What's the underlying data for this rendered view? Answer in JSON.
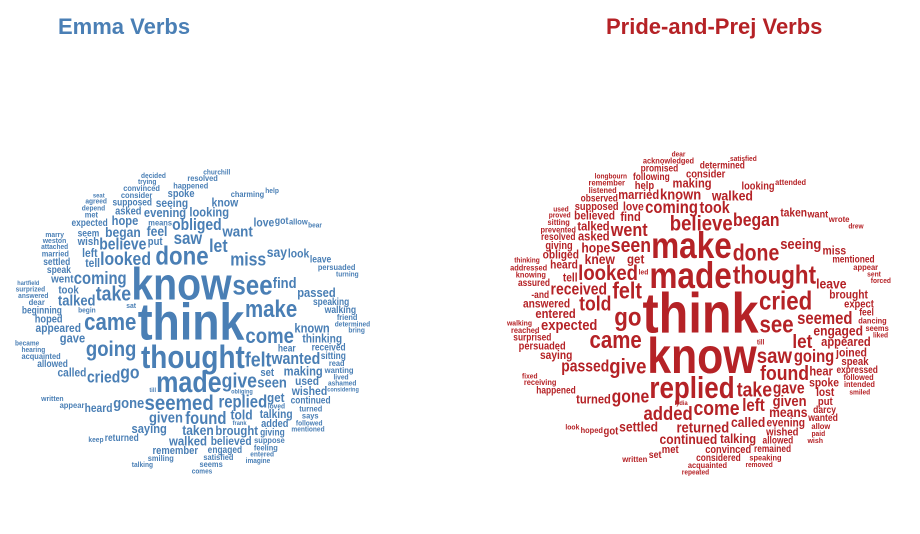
{
  "colors": {
    "emma": "#4a7fb5",
    "pride": "#b52226"
  },
  "clouds": [
    {
      "id": "emma",
      "title": "Emma Verbs",
      "words": [
        [
          "consider",
          8
        ],
        [
          "hear",
          9
        ],
        [
          "begin",
          7
        ],
        [
          "depend",
          7
        ],
        [
          "received",
          9
        ],
        [
          "happened",
          8
        ],
        [
          "attached",
          7
        ],
        [
          "satisfied",
          8
        ],
        [
          "means",
          8
        ],
        [
          "seem",
          9
        ],
        [
          "looking",
          12
        ],
        [
          "obliged",
          15
        ],
        [
          "appear",
          8
        ],
        [
          "suppose",
          8
        ],
        [
          "speaking",
          9
        ],
        [
          "see",
          26
        ],
        [
          "come",
          20
        ],
        [
          "engaged",
          9
        ],
        [
          "given",
          14
        ],
        [
          "charming",
          8
        ],
        [
          "hearing",
          7
        ],
        [
          "answered",
          7
        ],
        [
          "loved",
          7
        ],
        [
          "taken",
          13
        ],
        [
          "talking",
          11
        ],
        [
          "done",
          24
        ],
        [
          "feel",
          13
        ],
        [
          "known",
          12
        ],
        [
          "keep",
          7
        ],
        [
          "saw",
          16
        ],
        [
          "returned",
          9
        ],
        [
          "obliging",
          6
        ],
        [
          "frank",
          6
        ],
        [
          "give",
          19
        ],
        [
          "seen",
          14
        ],
        [
          "took",
          10
        ],
        [
          "smiling",
          8
        ],
        [
          "came",
          22
        ],
        [
          "set",
          10
        ],
        [
          "thought",
          30
        ],
        [
          "read",
          8
        ],
        [
          "trying",
          7
        ],
        [
          "supposed",
          9
        ],
        [
          "till",
          6
        ],
        [
          "thinking",
          11
        ],
        [
          "speak",
          9
        ],
        [
          "seat",
          6
        ],
        [
          "gave",
          12
        ],
        [
          "entered",
          7
        ],
        [
          "called",
          11
        ],
        [
          "went",
          10
        ],
        [
          "got",
          9
        ],
        [
          "evening",
          12
        ],
        [
          "sat",
          7
        ],
        [
          "determined",
          7
        ],
        [
          "asked",
          10
        ],
        [
          "lived",
          7
        ],
        [
          "find",
          14
        ],
        [
          "take",
          19
        ],
        [
          "saying",
          12
        ],
        [
          "acquainted",
          8
        ],
        [
          "followed",
          7
        ],
        [
          "heard",
          11
        ],
        [
          "turned",
          8
        ],
        [
          "gone",
          14
        ],
        [
          "making",
          12
        ],
        [
          "brought",
          12
        ],
        [
          "allow",
          8
        ],
        [
          "told",
          13
        ],
        [
          "believe",
          15
        ],
        [
          "began",
          13
        ],
        [
          "written",
          7
        ],
        [
          "appeared",
          11
        ],
        [
          "know",
          42
        ],
        [
          "go",
          17
        ],
        [
          "hartfield",
          6
        ],
        [
          "comes",
          7
        ],
        [
          "allowed",
          9
        ],
        [
          "met",
          8
        ],
        [
          "married",
          8
        ],
        [
          "want",
          14
        ],
        [
          "giving",
          9
        ],
        [
          "talking",
          7
        ],
        [
          "weston",
          7
        ],
        [
          "continued",
          9
        ],
        [
          "put",
          10
        ],
        [
          "replied",
          16
        ],
        [
          "miss",
          17
        ],
        [
          "agreed",
          7
        ],
        [
          "expected",
          9
        ],
        [
          "talked",
          14
        ],
        [
          "let",
          17
        ],
        [
          "bear",
          7
        ],
        [
          "convinced",
          8
        ],
        [
          "love",
          11
        ],
        [
          "sitting",
          9
        ],
        [
          "wanted",
          15
        ],
        [
          "get",
          12
        ],
        [
          "going",
          20
        ],
        [
          "wish",
          10
        ],
        [
          "coming",
          16
        ],
        [
          "seeing",
          11
        ],
        [
          "surprized",
          7
        ],
        [
          "say",
          13
        ],
        [
          "added",
          10
        ],
        [
          "remember",
          10
        ],
        [
          "found",
          16
        ],
        [
          "felt",
          19
        ],
        [
          "look",
          11
        ],
        [
          "tell",
          11
        ],
        [
          "think",
          48
        ],
        [
          "dear",
          8
        ],
        [
          "friend",
          8
        ],
        [
          "turning",
          7
        ],
        [
          "used",
          11
        ],
        [
          "make",
          22
        ],
        [
          "leave",
          9
        ],
        [
          "passed",
          12
        ],
        [
          "ashamed",
          7
        ],
        [
          "left",
          11
        ],
        [
          "looked",
          17
        ],
        [
          "mentioned",
          7
        ],
        [
          "feeling",
          8
        ],
        [
          "seems",
          8
        ],
        [
          "spoke",
          10
        ],
        [
          "know",
          11
        ],
        [
          "considering",
          6
        ],
        [
          "imagine",
          7
        ],
        [
          "cried",
          15
        ],
        [
          "made",
          27
        ],
        [
          "seemed",
          20
        ],
        [
          "beginning",
          9
        ],
        [
          "hope",
          12
        ],
        [
          "became",
          7
        ],
        [
          "settled",
          9
        ],
        [
          "walked",
          12
        ],
        [
          "hoped",
          10
        ],
        [
          "believed",
          11
        ],
        [
          "wished",
          11
        ],
        [
          "walking",
          9
        ],
        [
          "wanting",
          8
        ],
        [
          "persuaded",
          8
        ],
        [
          "decided",
          7
        ],
        [
          "bring",
          7
        ],
        [
          "says",
          8
        ],
        [
          "resolved",
          8
        ],
        [
          "help",
          7
        ],
        [
          "marry",
          7
        ],
        [
          "churchill",
          7
        ]
      ]
    },
    {
      "id": "pride",
      "title": "Pride-and-Prej Verbs",
      "words": [
        [
          "sent",
          7
        ],
        [
          "prevented",
          8
        ],
        [
          "paid",
          7
        ],
        [
          "repeated",
          7
        ],
        [
          "proved",
          7
        ],
        [
          "listened",
          8
        ],
        [
          "spoke",
          11
        ],
        [
          "allowed",
          9
        ],
        [
          "following",
          9
        ],
        [
          "walking",
          7
        ],
        [
          "heard",
          11
        ],
        [
          "dancing",
          8
        ],
        [
          "hoped",
          8
        ],
        [
          "longbourn",
          7
        ],
        [
          "mentioned",
          9
        ],
        [
          "knew",
          13
        ],
        [
          "asked",
          12
        ],
        [
          "walked",
          13
        ],
        [
          "entered",
          12
        ],
        [
          "considered",
          9
        ],
        [
          "acquainted",
          8
        ],
        [
          "looking",
          10
        ],
        [
          "took",
          15
        ],
        [
          "-and",
          9
        ],
        [
          "hope",
          13
        ],
        [
          "returned",
          14
        ],
        [
          "engaged",
          13
        ],
        [
          "appear",
          8
        ],
        [
          "removed",
          7
        ],
        [
          "called",
          13
        ],
        [
          "liked",
          7
        ],
        [
          "saw",
          20
        ],
        [
          "made",
          34
        ],
        [
          "expected",
          14
        ],
        [
          "smiled",
          7
        ],
        [
          "lydia",
          6
        ],
        [
          "happened",
          9
        ],
        [
          "turned",
          12
        ],
        [
          "gave",
          15
        ],
        [
          "look",
          7
        ],
        [
          "taken",
          11
        ],
        [
          "satisfied",
          7
        ],
        [
          "leave",
          13
        ],
        [
          "appeared",
          12
        ],
        [
          "thinking",
          7
        ],
        [
          "talked",
          12
        ],
        [
          "gone",
          17
        ],
        [
          "looked",
          20
        ],
        [
          "tell",
          11
        ],
        [
          "seen",
          19
        ],
        [
          "left",
          16
        ],
        [
          "began",
          17
        ],
        [
          "means",
          13
        ],
        [
          "used",
          7
        ],
        [
          "followed",
          8
        ],
        [
          "observed",
          9
        ],
        [
          "believe",
          20
        ],
        [
          "knowing",
          8
        ],
        [
          "attended",
          8
        ],
        [
          "found",
          19
        ],
        [
          "wished",
          10
        ],
        [
          "think",
          52
        ],
        [
          "speaking",
          8
        ],
        [
          "seeing",
          14
        ],
        [
          "give",
          20
        ],
        [
          "come",
          19
        ],
        [
          "get",
          12
        ],
        [
          "convinced",
          10
        ],
        [
          "going",
          16
        ],
        [
          "wrote",
          8
        ],
        [
          "remember",
          8
        ],
        [
          "brought",
          11
        ],
        [
          "dear",
          7
        ],
        [
          "thought",
          24
        ],
        [
          "resolved",
          9
        ],
        [
          "help",
          10
        ],
        [
          "met",
          10
        ],
        [
          "felt",
          21
        ],
        [
          "added",
          18
        ],
        [
          "allow",
          8
        ],
        [
          "want",
          9
        ],
        [
          "take",
          19
        ],
        [
          "let",
          18
        ],
        [
          "evening",
          11
        ],
        [
          "forced",
          7
        ],
        [
          "settled",
          13
        ],
        [
          "see",
          22
        ],
        [
          "go",
          24
        ],
        [
          "seemed",
          16
        ],
        [
          "expressed",
          9
        ],
        [
          "came",
          22
        ],
        [
          "talking",
          12
        ],
        [
          "till",
          7
        ],
        [
          "married",
          12
        ],
        [
          "expect",
          10
        ],
        [
          "saying",
          11
        ],
        [
          "replied",
          28
        ],
        [
          "know",
          46
        ],
        [
          "remained",
          9
        ],
        [
          "received",
          15
        ],
        [
          "reached",
          8
        ],
        [
          "consider",
          10
        ],
        [
          "surprised",
          9
        ],
        [
          "miss",
          11
        ],
        [
          "make",
          34
        ],
        [
          "find",
          12
        ],
        [
          "darcy",
          9
        ],
        [
          "feel",
          9
        ],
        [
          "answered",
          11
        ],
        [
          "set",
          9
        ],
        [
          "done",
          21
        ],
        [
          "wish",
          7
        ],
        [
          "passed",
          15
        ],
        [
          "supposed",
          10
        ],
        [
          "coming",
          16
        ],
        [
          "hear",
          12
        ],
        [
          "cried",
          24
        ],
        [
          "put",
          10
        ],
        [
          "went",
          17
        ],
        [
          "given",
          14
        ],
        [
          "love",
          11
        ],
        [
          "acknowledged",
          8
        ],
        [
          "known",
          14
        ],
        [
          "told",
          19
        ],
        [
          "got",
          10
        ],
        [
          "led",
          7
        ],
        [
          "lost",
          11
        ],
        [
          "promised",
          9
        ],
        [
          "fixed",
          7
        ],
        [
          "believed",
          11
        ],
        [
          "continued",
          13
        ],
        [
          "giving",
          10
        ],
        [
          "assured",
          9
        ],
        [
          "wanted",
          9
        ],
        [
          "determined",
          9
        ],
        [
          "making",
          12
        ],
        [
          "obliged",
          11
        ],
        [
          "drew",
          7
        ],
        [
          "joined",
          11
        ],
        [
          "sitting",
          8
        ],
        [
          "seems",
          8
        ],
        [
          "intended",
          8
        ],
        [
          "written",
          8
        ],
        [
          "receiving",
          8
        ],
        [
          "persuaded",
          10
        ],
        [
          "addressed",
          8
        ],
        [
          "speak",
          10
        ]
      ]
    }
  ]
}
